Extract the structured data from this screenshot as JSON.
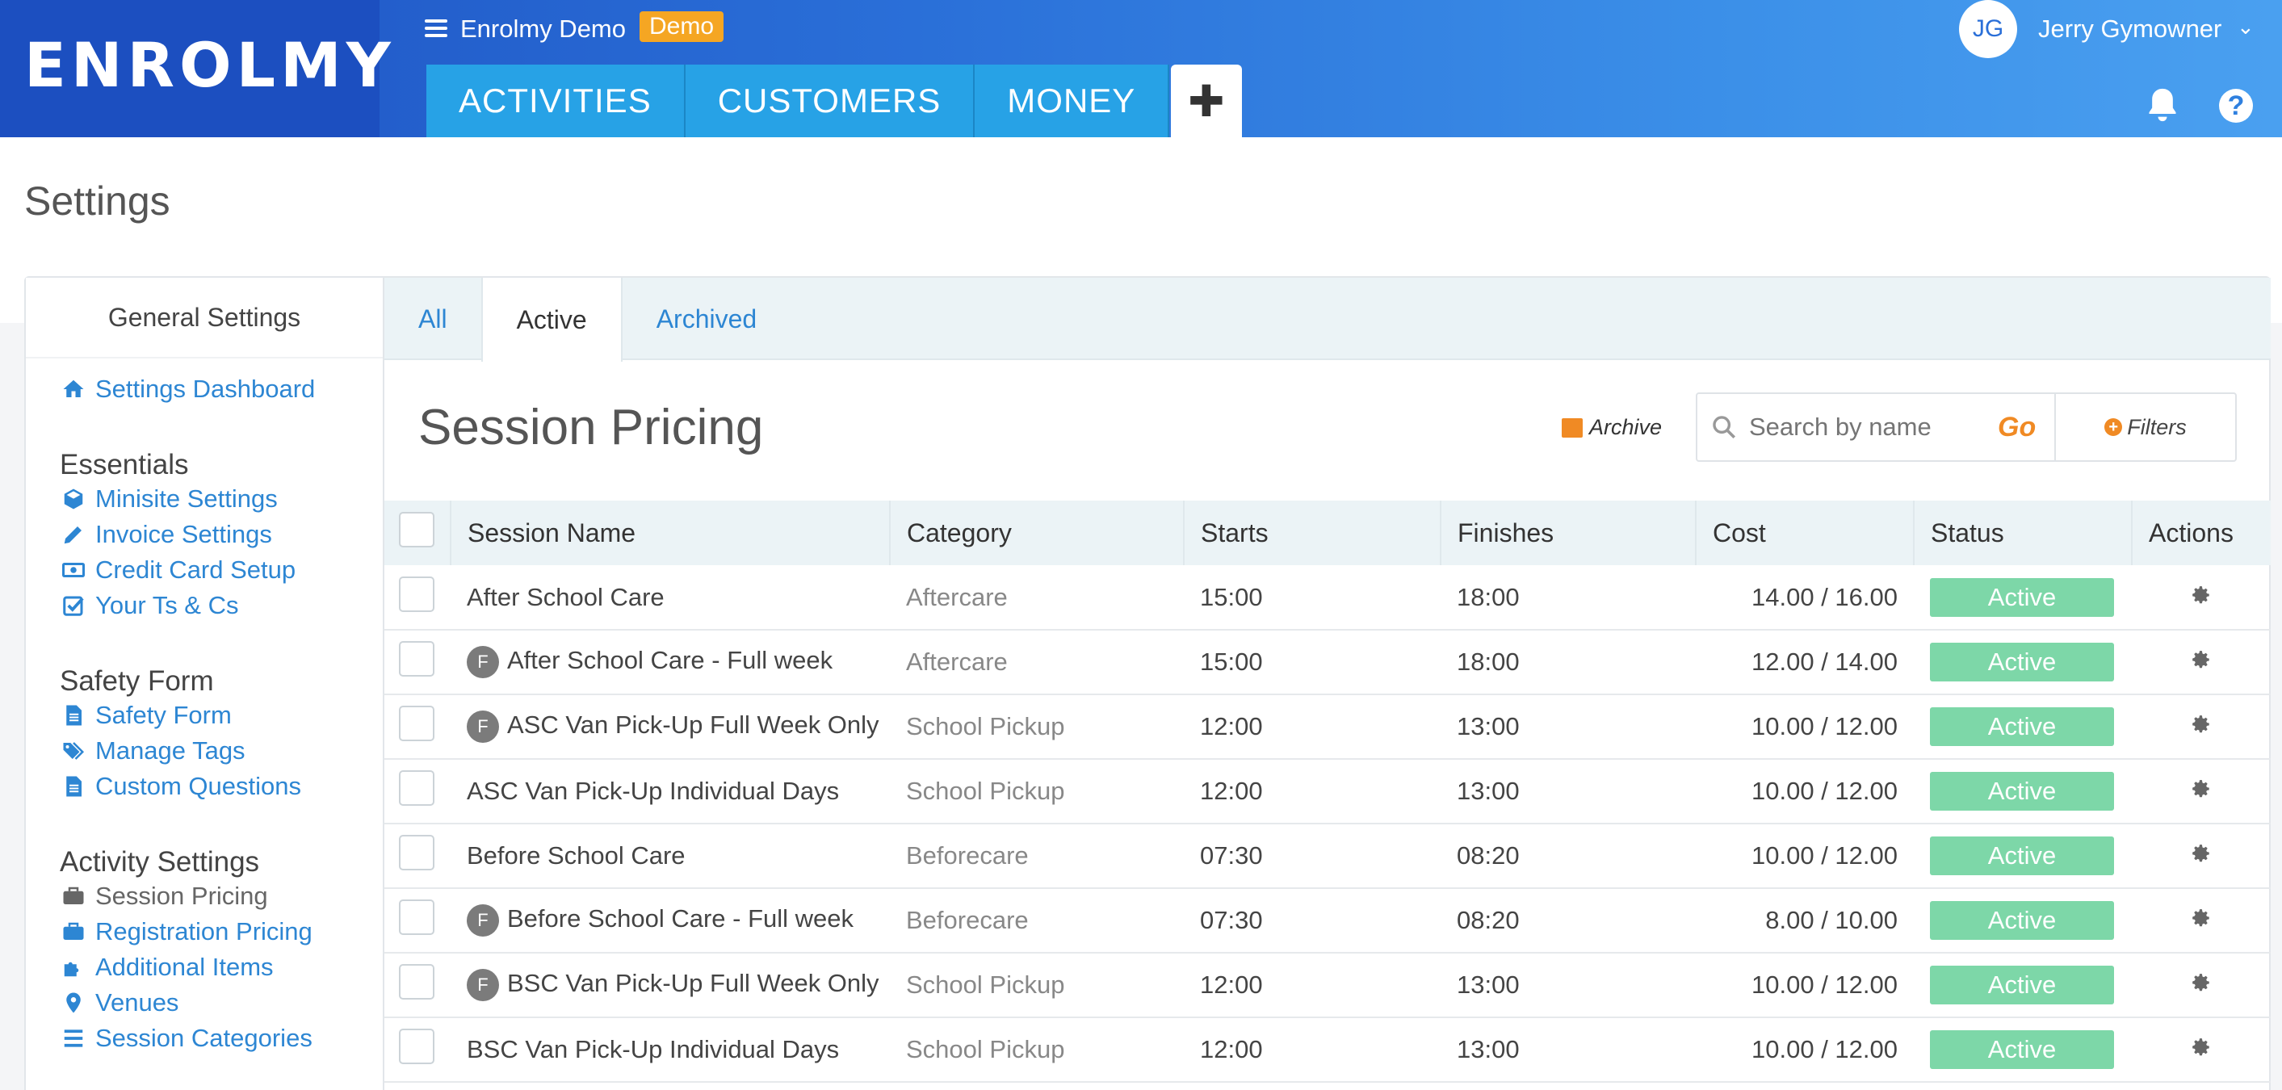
{
  "app": {
    "logo": "ENROLMY",
    "org_name": "Enrolmy Demo",
    "badge": "Demo",
    "user_initials": "JG",
    "user_name": "Jerry Gymowner"
  },
  "nav": {
    "tabs": [
      "ACTIVITIES",
      "CUSTOMERS",
      "MONEY"
    ],
    "plus": "✚"
  },
  "page": {
    "title": "Settings"
  },
  "sidebar": {
    "heading": "General Settings",
    "dashboard": "Settings Dashboard",
    "sections": [
      {
        "title": "Essentials",
        "items": [
          "Minisite Settings",
          "Invoice Settings",
          "Credit Card Setup",
          "Your Ts & Cs"
        ]
      },
      {
        "title": "Safety Form",
        "items": [
          "Safety Form",
          "Manage Tags",
          "Custom Questions"
        ]
      },
      {
        "title": "Activity Settings",
        "items": [
          "Session Pricing",
          "Registration Pricing",
          "Additional Items",
          "Venues",
          "Session Categories"
        ]
      }
    ]
  },
  "tabs": [
    "All",
    "Active",
    "Archived"
  ],
  "section": {
    "title": "Session Pricing",
    "archive": "Archive",
    "search_placeholder": "Search by name",
    "go": "Go",
    "filters": "Filters"
  },
  "table": {
    "headers": [
      "Session Name",
      "Category",
      "Starts",
      "Finishes",
      "Cost",
      "Status",
      "Actions"
    ],
    "rows": [
      {
        "flag": "",
        "name": "After School Care",
        "category": "Aftercare",
        "starts": "15:00",
        "finishes": "18:00",
        "cost": "14.00  / 16.00",
        "status": "Active"
      },
      {
        "flag": "F",
        "name": "After School Care - Full week",
        "category": "Aftercare",
        "starts": "15:00",
        "finishes": "18:00",
        "cost": "12.00  / 14.00",
        "status": "Active"
      },
      {
        "flag": "F",
        "name": "ASC Van Pick-Up Full Week Only",
        "category": "School Pickup",
        "starts": "12:00",
        "finishes": "13:00",
        "cost": "10.00  / 12.00",
        "status": "Active"
      },
      {
        "flag": "",
        "name": "ASC Van Pick-Up Individual Days",
        "category": "School Pickup",
        "starts": "12:00",
        "finishes": "13:00",
        "cost": "10.00  / 12.00",
        "status": "Active"
      },
      {
        "flag": "",
        "name": "Before School Care",
        "category": "Beforecare",
        "starts": "07:30",
        "finishes": "08:20",
        "cost": "10.00  / 12.00",
        "status": "Active"
      },
      {
        "flag": "F",
        "name": "Before School Care - Full week",
        "category": "Beforecare",
        "starts": "07:30",
        "finishes": "08:20",
        "cost": "8.00  / 10.00",
        "status": "Active"
      },
      {
        "flag": "F",
        "name": "BSC Van Pick-Up Full Week Only",
        "category": "School Pickup",
        "starts": "12:00",
        "finishes": "13:00",
        "cost": "10.00  / 12.00",
        "status": "Active"
      },
      {
        "flag": "",
        "name": "BSC Van Pick-Up Individual Days",
        "category": "School Pickup",
        "starts": "12:00",
        "finishes": "13:00",
        "cost": "10.00  / 12.00",
        "status": "Active"
      }
    ]
  },
  "colors": {
    "brand": "#1e52c2",
    "tab": "#27a2e6",
    "link": "#2d86d3",
    "accent": "#f08a24",
    "status_active": "#7dd7a8"
  }
}
